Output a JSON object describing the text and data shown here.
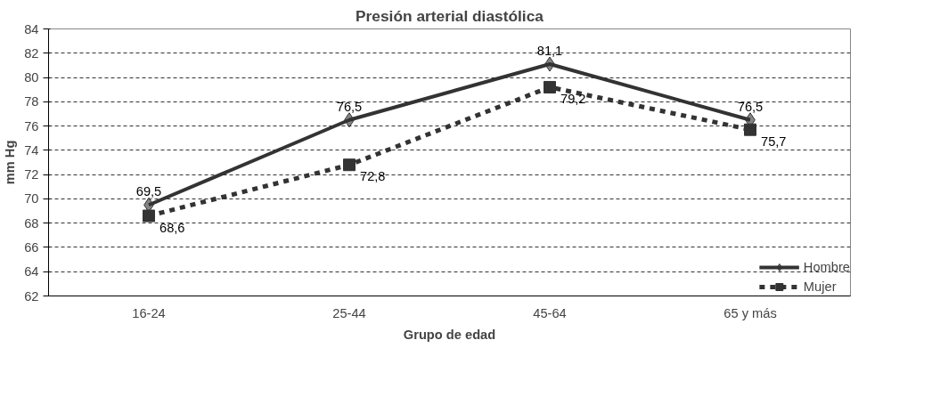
{
  "chart_data": {
    "type": "line",
    "title": "Presión arterial diastólica",
    "xlabel": "Grupo de edad",
    "ylabel": "mm Hg",
    "categories": [
      "16-24",
      "25-44",
      "45-64",
      "65 y más"
    ],
    "series": [
      {
        "name": "Hombre",
        "color": "#333333",
        "values": [
          69.5,
          76.5,
          81.1,
          76.5
        ],
        "value_labels": [
          "69,5",
          "76,5",
          "81,1",
          "76,5"
        ],
        "marker": "diamond",
        "line_style": "solid"
      },
      {
        "name": "Mujer",
        "color": "#333333",
        "values": [
          68.6,
          72.8,
          79.2,
          75.7
        ],
        "value_labels": [
          "68,6",
          "72,8",
          "79,2",
          "75,7"
        ],
        "marker": "square",
        "line_style": "dashed"
      }
    ],
    "ylim": [
      62,
      84
    ],
    "yticks": [
      62,
      64,
      66,
      68,
      70,
      72,
      74,
      76,
      78,
      80,
      82,
      84
    ],
    "grid": "y",
    "legend": "bottom right"
  }
}
